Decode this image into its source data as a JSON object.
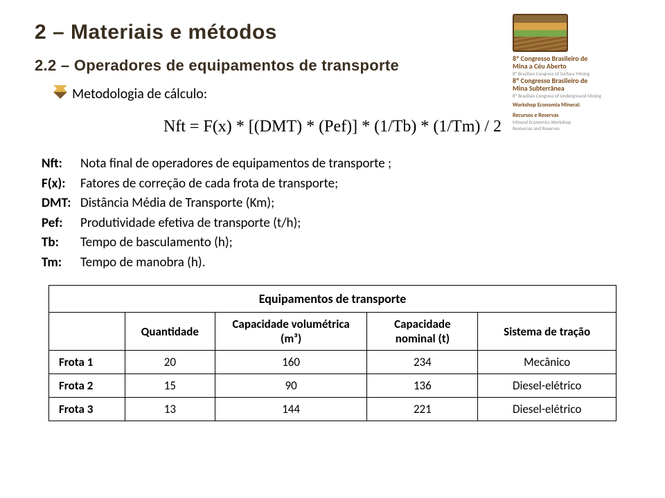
{
  "title": "2 – Materiais e métodos",
  "subtitle": "2.2 – Operadores de equipamentos de transporte",
  "method_label": "Metodologia de cálculo:",
  "formula": "Nft = F(x) * [(DMT) * (Pef)] * (1/Tb) * (1/Tm) / 2",
  "defs": [
    {
      "key": "Nft:",
      "val": "Nota final de operadores de equipamentos de transporte ;"
    },
    {
      "key": "F(x):",
      "val": "Fatores de correção de cada frota de transporte;"
    },
    {
      "key": "DMT:",
      "val": "Distância Média de Transporte (Km);"
    },
    {
      "key": "Pef:",
      "val": "Produtividade efetiva de transporte (t/h);"
    },
    {
      "key": "Tb:",
      "val": "Tempo de basculamento (h);"
    },
    {
      "key": "Tm:",
      "val": "Tempo de manobra (h)."
    }
  ],
  "table": {
    "title": "Equipamentos de transporte",
    "columns": [
      "",
      "Quantidade",
      "Capacidade volumétrica (m³)",
      "Capacidade nominal (t)",
      "Sistema de tração"
    ],
    "rows": [
      [
        "Frota 1",
        "20",
        "160",
        "234",
        "Mecânico"
      ],
      [
        "Frota 2",
        "15",
        "90",
        "136",
        "Diesel-elétrico"
      ],
      [
        "Frota 3",
        "13",
        "144",
        "221",
        "Diesel-elétrico"
      ]
    ],
    "col_widths": [
      "110px",
      "130px",
      "220px",
      "160px",
      "200px"
    ],
    "border_color": "#000000",
    "header_fontsize": 17,
    "cell_fontsize": 17
  },
  "logo": {
    "line1": "8º Congresso Brasileiro de",
    "line2": "Mina a Céu Aberto",
    "line3": "8º Brazilian Congress of Surface Mining",
    "line4": "8º Congresso Brasileiro de",
    "line5": "Mina Subterrânea",
    "line6": "8º Brazilian Congress of Underground Mining",
    "line7": "Workshop Economia Mineral:",
    "line8": "Recursos e Reservas",
    "line9": "Mineral Economics Workshop",
    "line10": "Resources and Reserves"
  },
  "colors": {
    "title_color": "#3a2e1f",
    "diamond_light": "#e6b44d",
    "diamond_dark": "#7a5a2b",
    "background": "#ffffff"
  },
  "typography": {
    "title_fontsize": 30,
    "subtitle_fontsize": 22,
    "body_fontsize": 19,
    "formula_fontsize": 24
  }
}
